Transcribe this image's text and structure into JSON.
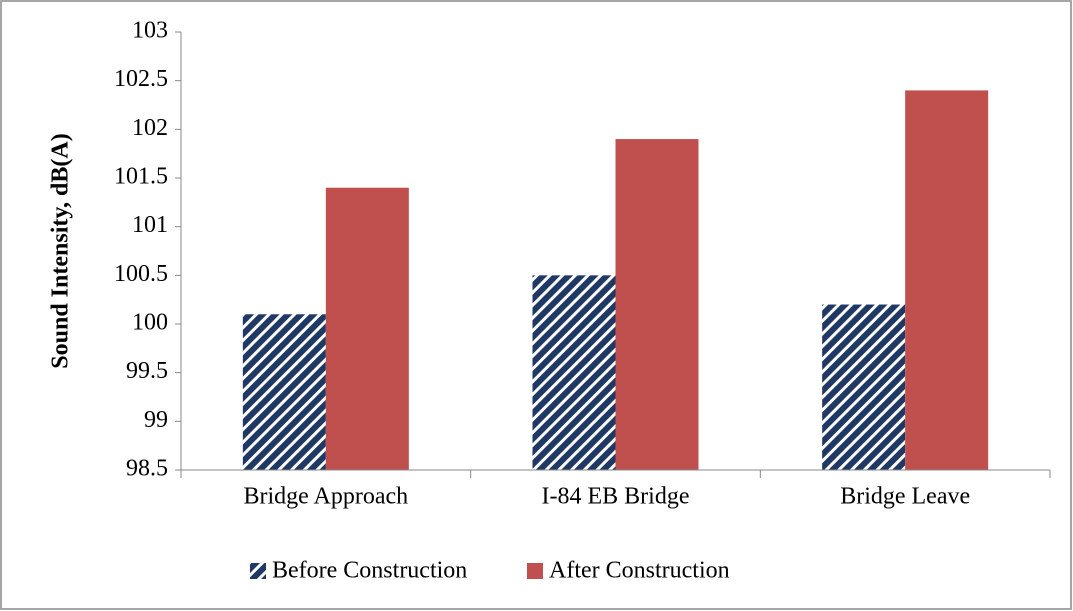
{
  "chart_data": {
    "type": "bar",
    "y_label": "Sound Intensity, dB(A)",
    "categories": [
      "Bridge Approach",
      "I-84 EB Bridge",
      "Bridge Leave"
    ],
    "series": [
      {
        "name": "Before Construction",
        "color": "#1f3864",
        "pattern": "diagonal-stripes",
        "values": [
          100.1,
          100.5,
          100.2
        ]
      },
      {
        "name": "After Construction",
        "color": "#c0504d",
        "values": [
          101.4,
          101.9,
          102.4
        ]
      }
    ],
    "ylim": [
      98.5,
      103
    ],
    "yticks": [
      98.5,
      99,
      99.5,
      100,
      100.5,
      101,
      101.5,
      102,
      102.5,
      103
    ],
    "grid": false,
    "legend": "bottom"
  }
}
